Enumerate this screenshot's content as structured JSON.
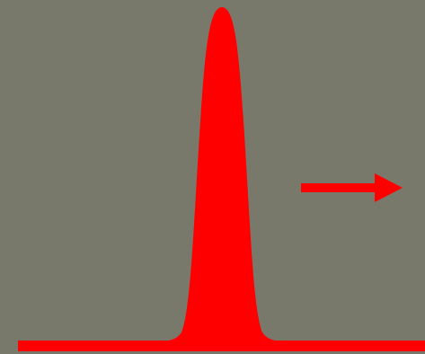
{
  "diagram": {
    "background_color": "#78796a",
    "shape_color": "#ff0000",
    "baseline": {
      "description_name": "baseline-bar"
    },
    "pulse": {
      "description_name": "pulse-peak"
    },
    "arrow": {
      "direction": "right",
      "icon": "arrow-right-icon"
    }
  }
}
